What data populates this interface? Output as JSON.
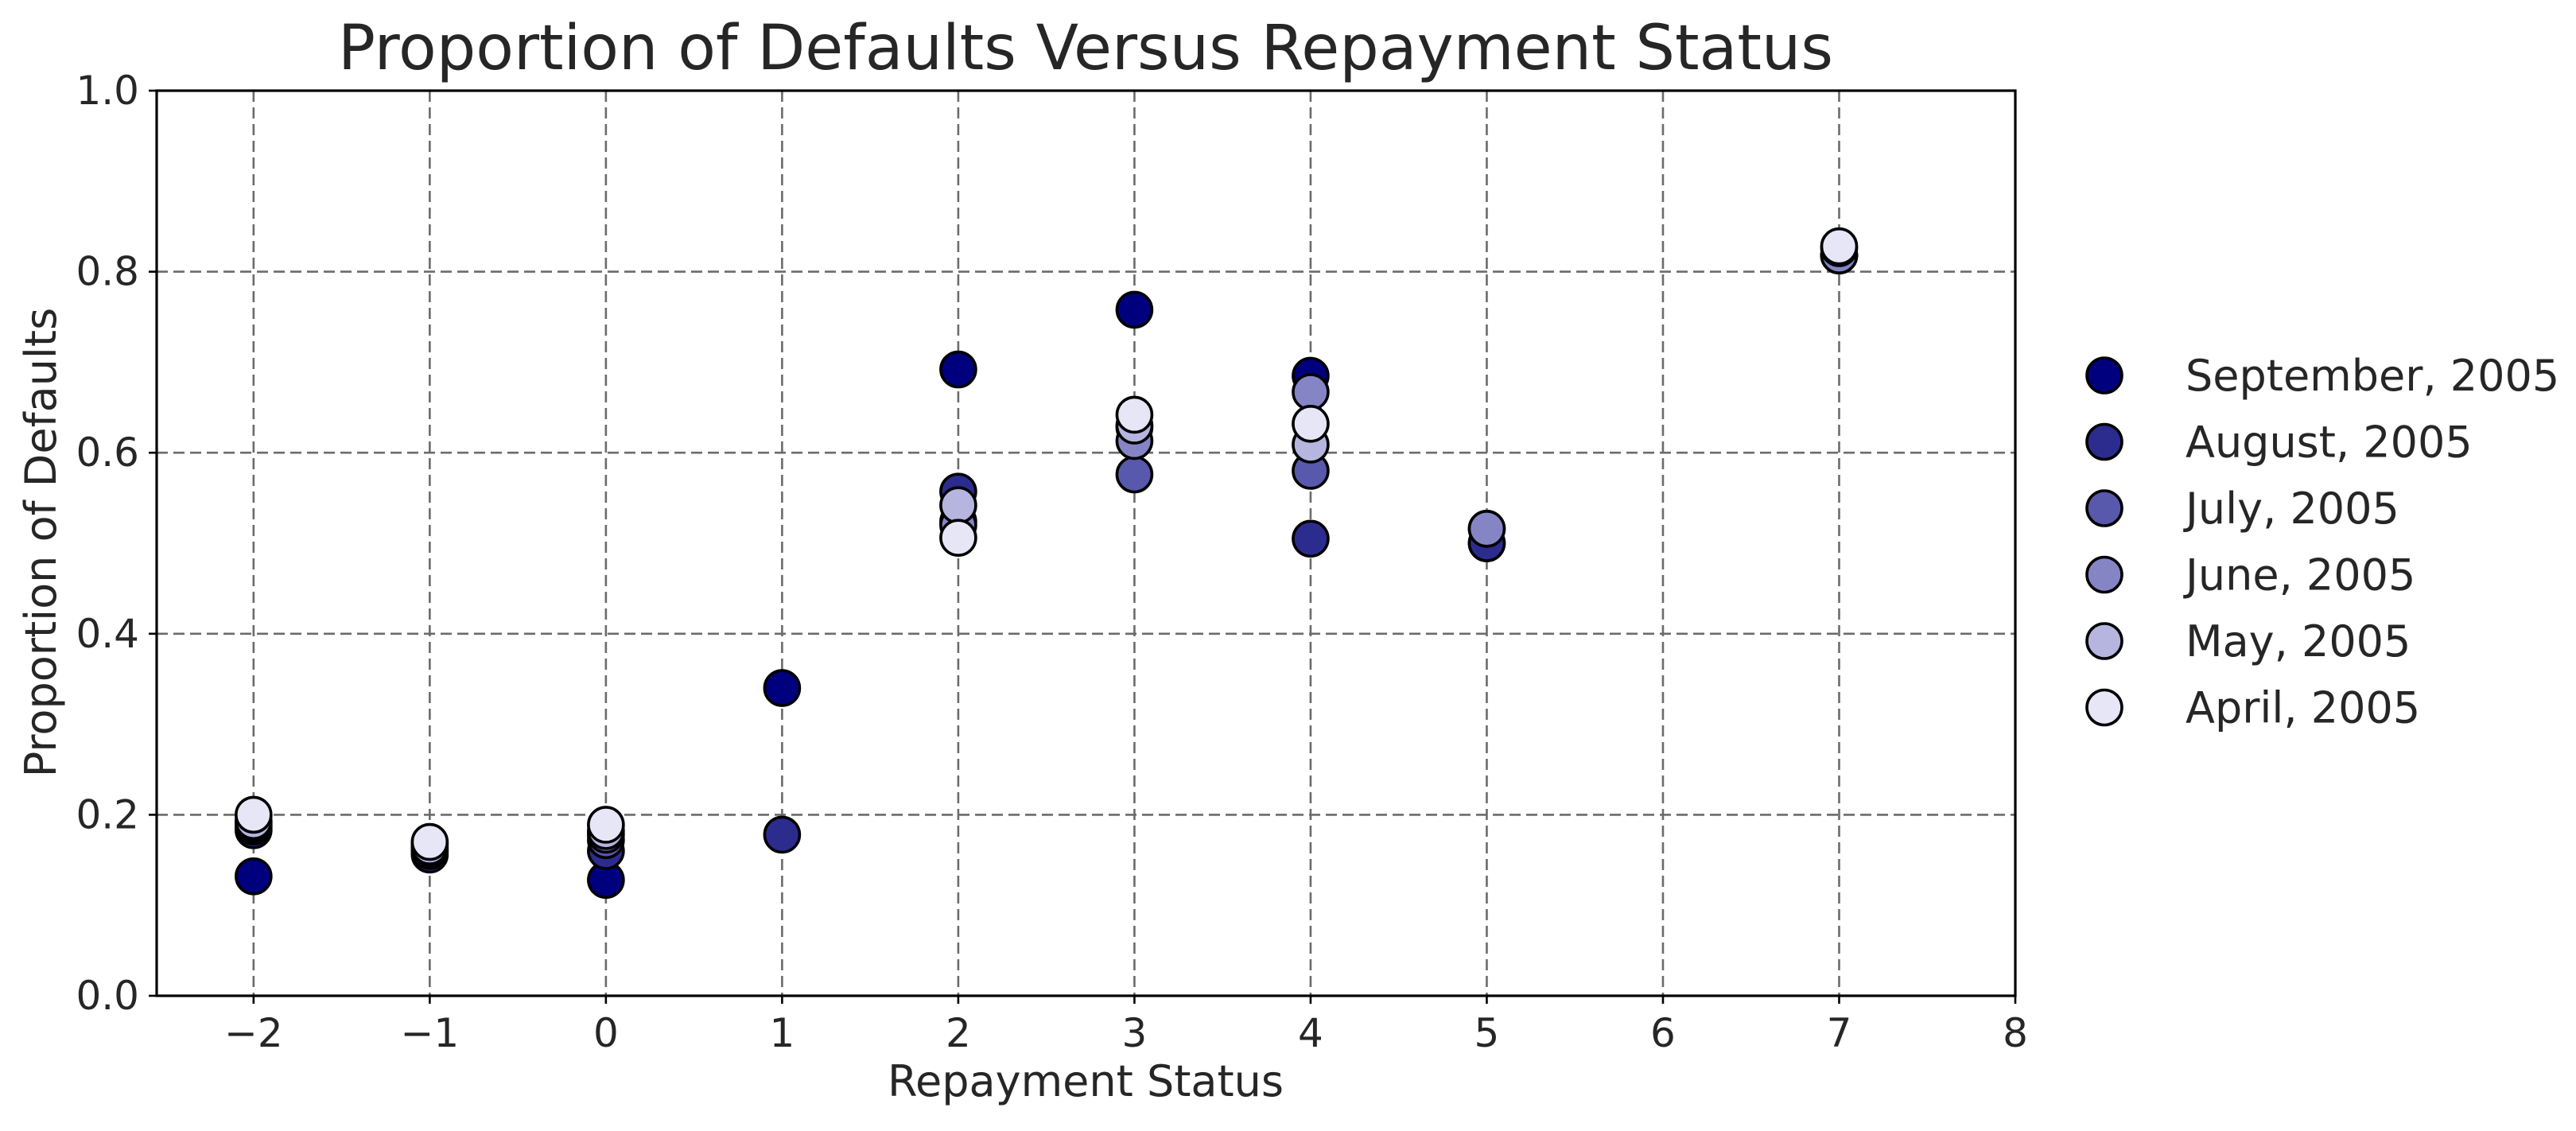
{
  "chart_data": {
    "type": "scatter",
    "title": "Proportion of Defaults Versus Repayment Status",
    "xlabel": "Repayment Status",
    "ylabel": "Proportion of Defaults",
    "xlim": [
      -2.55,
      8
    ],
    "ylim": [
      0,
      1.0
    ],
    "xticks": [
      -2,
      -1,
      0,
      1,
      2,
      3,
      4,
      5,
      6,
      7,
      8
    ],
    "xtick_labels": [
      "−2",
      "−1",
      "0",
      "1",
      "2",
      "3",
      "4",
      "5",
      "6",
      "7",
      "8"
    ],
    "yticks": [
      0.0,
      0.2,
      0.4,
      0.6,
      0.8,
      1.0
    ],
    "ytick_labels": [
      "0.0",
      "0.2",
      "0.4",
      "0.6",
      "0.8",
      "1.0"
    ],
    "grid": true,
    "legend_position": "right",
    "series": [
      {
        "name": "September, 2005",
        "color": "#00007f",
        "points": [
          {
            "x": -2,
            "y": 0.132
          },
          {
            "x": -1,
            "y": 0.168
          },
          {
            "x": 0,
            "y": 0.128
          },
          {
            "x": 1,
            "y": 0.34
          },
          {
            "x": 2,
            "y": 0.692
          },
          {
            "x": 3,
            "y": 0.758
          },
          {
            "x": 4,
            "y": 0.685
          },
          {
            "x": 5,
            "y": 0.5
          },
          {
            "x": 7,
            "y": 0.818
          }
        ]
      },
      {
        "name": "August, 2005",
        "color": "#2c2c8f",
        "points": [
          {
            "x": -2,
            "y": 0.183
          },
          {
            "x": -1,
            "y": 0.156
          },
          {
            "x": 0,
            "y": 0.16
          },
          {
            "x": 1,
            "y": 0.178
          },
          {
            "x": 2,
            "y": 0.557
          },
          {
            "x": 3,
            "y": 0.628
          },
          {
            "x": 4,
            "y": 0.505
          },
          {
            "x": 5,
            "y": 0.5
          },
          {
            "x": 7,
            "y": 0.818
          }
        ]
      },
      {
        "name": "July, 2005",
        "color": "#5858ac",
        "points": [
          {
            "x": -2,
            "y": 0.187
          },
          {
            "x": -1,
            "y": 0.16
          },
          {
            "x": 0,
            "y": 0.172
          },
          {
            "x": 2,
            "y": 0.524
          },
          {
            "x": 3,
            "y": 0.576
          },
          {
            "x": 4,
            "y": 0.58
          },
          {
            "x": 5,
            "y": 0.516
          },
          {
            "x": 7,
            "y": 0.818
          }
        ]
      },
      {
        "name": "June, 2005",
        "color": "#8585c5",
        "points": [
          {
            "x": -2,
            "y": 0.19
          },
          {
            "x": -1,
            "y": 0.162
          },
          {
            "x": 0,
            "y": 0.178
          },
          {
            "x": 2,
            "y": 0.52
          },
          {
            "x": 3,
            "y": 0.613
          },
          {
            "x": 4,
            "y": 0.667
          },
          {
            "x": 5,
            "y": 0.516
          },
          {
            "x": 7,
            "y": 0.818
          }
        ]
      },
      {
        "name": "May, 2005",
        "color": "#b5b5e0",
        "points": [
          {
            "x": -2,
            "y": 0.193
          },
          {
            "x": -1,
            "y": 0.165
          },
          {
            "x": 0,
            "y": 0.182
          },
          {
            "x": 2,
            "y": 0.542
          },
          {
            "x": 3,
            "y": 0.63
          },
          {
            "x": 4,
            "y": 0.609
          },
          {
            "x": 7,
            "y": 0.826
          }
        ]
      },
      {
        "name": "April, 2005",
        "color": "#e6e6f7",
        "points": [
          {
            "x": -2,
            "y": 0.2
          },
          {
            "x": -1,
            "y": 0.17
          },
          {
            "x": 0,
            "y": 0.189
          },
          {
            "x": 2,
            "y": 0.506
          },
          {
            "x": 3,
            "y": 0.642
          },
          {
            "x": 4,
            "y": 0.632
          },
          {
            "x": 7,
            "y": 0.828
          }
        ]
      }
    ]
  }
}
